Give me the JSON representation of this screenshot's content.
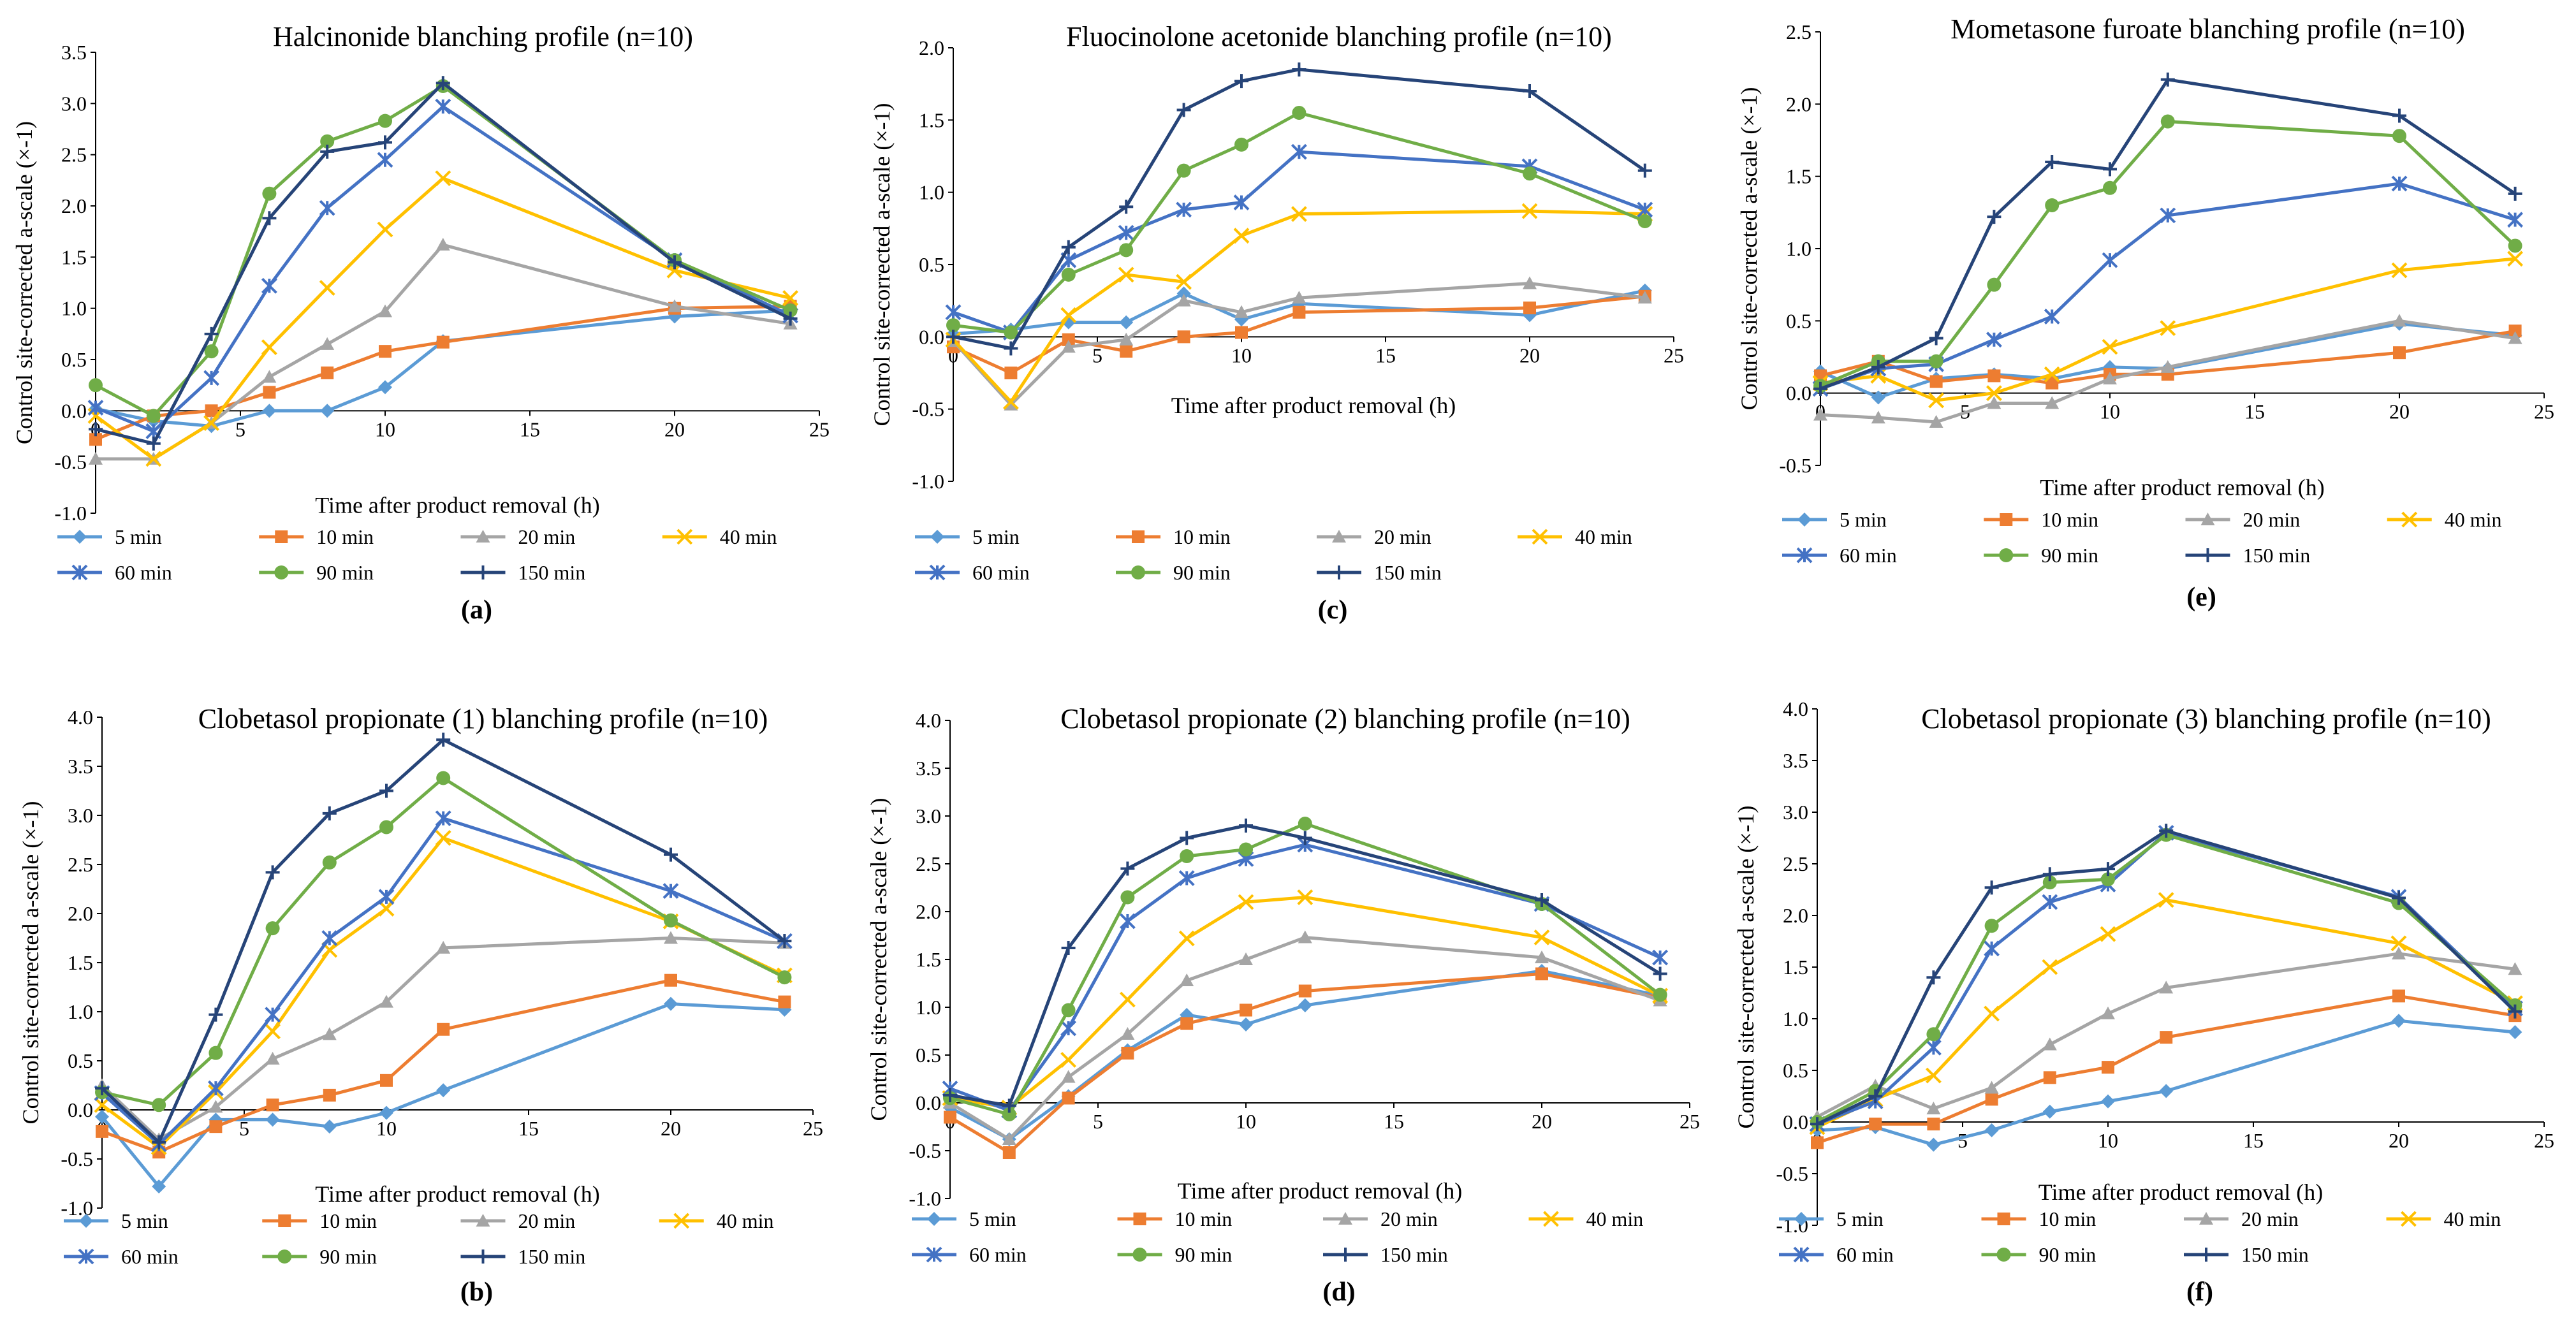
{
  "figure": {
    "x_axis_label": "Time after product removal (h)",
    "y_axis_label": "Control site-corrected a-scale (×-1)"
  },
  "series_meta": [
    {
      "name": "5 min",
      "color": "#5B9BD5",
      "marker": "diamond"
    },
    {
      "name": "10 min",
      "color": "#ED7D31",
      "marker": "square"
    },
    {
      "name": "20 min",
      "color": "#A5A5A5",
      "marker": "triangle"
    },
    {
      "name": "40 min",
      "color": "#FFC000",
      "marker": "x"
    },
    {
      "name": "60 min",
      "color": "#4472C4",
      "marker": "star"
    },
    {
      "name": "90 min",
      "color": "#70AD47",
      "marker": "circle"
    },
    {
      "name": "150 min",
      "color": "#264478",
      "marker": "plus"
    }
  ],
  "chart_data": [
    {
      "type": "line",
      "label": "(a)",
      "title": "Halcinonide blanching profile (n=10)",
      "xlabel": "Time after product removal (h)",
      "ylabel": "Control site-corrected a-scale (×-1)",
      "xlim": [
        0,
        25
      ],
      "ylim": [
        -1.0,
        3.5
      ],
      "yticks": [
        "-1.0",
        "-0.5",
        "0.0",
        "0.5",
        "1.0",
        "1.5",
        "2.0",
        "2.5",
        "3.0",
        "3.5"
      ],
      "xticks": [
        "0",
        "5",
        "10",
        "15",
        "20",
        "25"
      ],
      "x": [
        0,
        2,
        4,
        6,
        8,
        10,
        12,
        20,
        24
      ],
      "series": [
        {
          "name": "5 min",
          "values": [
            0.02,
            -0.1,
            -0.15,
            0.0,
            0.0,
            0.23,
            0.68,
            0.92,
            0.98
          ]
        },
        {
          "name": "10 min",
          "values": [
            -0.28,
            -0.05,
            0.0,
            0.18,
            0.37,
            0.58,
            0.67,
            1.0,
            1.02
          ]
        },
        {
          "name": "20 min",
          "values": [
            -0.47,
            -0.47,
            -0.12,
            0.33,
            0.65,
            0.97,
            1.62,
            1.02,
            0.85
          ]
        },
        {
          "name": "40 min",
          "values": [
            -0.05,
            -0.47,
            -0.12,
            0.62,
            1.2,
            1.77,
            2.27,
            1.37,
            1.1
          ]
        },
        {
          "name": "60 min",
          "values": [
            0.03,
            -0.2,
            0.32,
            1.22,
            1.98,
            2.45,
            2.97,
            1.47,
            0.93
          ]
        },
        {
          "name": "90 min",
          "values": [
            0.25,
            -0.05,
            0.58,
            2.12,
            2.63,
            2.83,
            3.17,
            1.47,
            0.98
          ]
        },
        {
          "name": "150 min",
          "values": [
            -0.18,
            -0.32,
            0.75,
            1.88,
            2.53,
            2.62,
            3.2,
            1.45,
            0.9
          ]
        }
      ]
    },
    {
      "type": "line",
      "label": "(c)",
      "title": "Fluocinolone acetonide blanching profile (n=10)",
      "xlabel": "Time after product removal (h)",
      "ylabel": "Control site-corrected a-scale (×-1)",
      "xlim": [
        0,
        25
      ],
      "ylim": [
        -1.0,
        2.0
      ],
      "yticks": [
        "-1.0",
        "-0.5",
        "0.0",
        "0.5",
        "1.0",
        "1.5",
        "2.0"
      ],
      "xticks": [
        "0",
        "5",
        "10",
        "15",
        "20",
        "25"
      ],
      "x": [
        0,
        2,
        4,
        6,
        8,
        10,
        12,
        20,
        24
      ],
      "series": [
        {
          "name": "5 min",
          "values": [
            0.02,
            0.05,
            0.1,
            0.1,
            0.3,
            0.12,
            0.23,
            0.15,
            0.32
          ]
        },
        {
          "name": "10 min",
          "values": [
            -0.07,
            -0.25,
            -0.02,
            -0.1,
            0.0,
            0.03,
            0.17,
            0.2,
            0.28
          ]
        },
        {
          "name": "20 min",
          "values": [
            -0.03,
            -0.47,
            -0.07,
            -0.02,
            0.25,
            0.17,
            0.27,
            0.37,
            0.27
          ]
        },
        {
          "name": "40 min",
          "values": [
            -0.02,
            -0.45,
            0.15,
            0.43,
            0.38,
            0.7,
            0.85,
            0.87,
            0.85
          ]
        },
        {
          "name": "60 min",
          "values": [
            0.17,
            0.03,
            0.53,
            0.72,
            0.88,
            0.93,
            1.28,
            1.18,
            0.88
          ]
        },
        {
          "name": "90 min",
          "values": [
            0.08,
            0.03,
            0.43,
            0.6,
            1.15,
            1.33,
            1.55,
            1.13,
            0.8
          ]
        },
        {
          "name": "150 min",
          "values": [
            0.0,
            -0.08,
            0.62,
            0.9,
            1.57,
            1.77,
            1.85,
            1.7,
            1.15
          ]
        }
      ]
    },
    {
      "type": "line",
      "label": "(e)",
      "title": "Mometasone furoate blanching profile (n=10)",
      "xlabel": "Time after product removal (h)",
      "ylabel": "Control site-corrected a-scale (×-1)",
      "xlim": [
        0,
        25
      ],
      "ylim": [
        -0.5,
        2.5
      ],
      "yticks": [
        "-0.5",
        "0.0",
        "0.5",
        "1.0",
        "1.5",
        "2.0",
        "2.5"
      ],
      "xticks": [
        "0",
        "5",
        "10",
        "15",
        "20",
        "25"
      ],
      "x": [
        0,
        2,
        4,
        6,
        8,
        10,
        12,
        20,
        24
      ],
      "series": [
        {
          "name": "5 min",
          "values": [
            0.15,
            -0.03,
            0.1,
            0.13,
            0.1,
            0.18,
            0.17,
            0.48,
            0.4
          ]
        },
        {
          "name": "10 min",
          "values": [
            0.12,
            0.22,
            0.08,
            0.12,
            0.07,
            0.13,
            0.13,
            0.28,
            0.43
          ]
        },
        {
          "name": "20 min",
          "values": [
            -0.15,
            -0.17,
            -0.2,
            -0.07,
            -0.07,
            0.1,
            0.18,
            0.5,
            0.38
          ]
        },
        {
          "name": "40 min",
          "values": [
            0.07,
            0.12,
            -0.05,
            0.0,
            0.13,
            0.32,
            0.45,
            0.85,
            0.93
          ]
        },
        {
          "name": "60 min",
          "values": [
            0.03,
            0.17,
            0.2,
            0.37,
            0.53,
            0.92,
            1.23,
            1.45,
            1.2
          ]
        },
        {
          "name": "90 min",
          "values": [
            0.05,
            0.22,
            0.22,
            0.75,
            1.3,
            1.42,
            1.88,
            1.78,
            1.02
          ]
        },
        {
          "name": "150 min",
          "values": [
            0.03,
            0.18,
            0.38,
            1.22,
            1.6,
            1.55,
            2.17,
            1.92,
            1.38
          ]
        }
      ]
    },
    {
      "type": "line",
      "label": "(b)",
      "title": "Clobetasol propionate (1) blanching profile (n=10)",
      "xlabel": "Time after product removal (h)",
      "ylabel": "Control site-corrected a-scale (×-1)",
      "xlim": [
        0,
        25
      ],
      "ylim": [
        -1.0,
        4.0
      ],
      "yticks": [
        "-1.0",
        "-0.5",
        "0.0",
        "0.5",
        "1.0",
        "1.5",
        "2.0",
        "2.5",
        "3.0",
        "3.5",
        "4.0"
      ],
      "xticks": [
        "0",
        "5",
        "10",
        "15",
        "20",
        "25"
      ],
      "x": [
        0,
        2,
        4,
        6,
        8,
        10,
        12,
        20,
        24
      ],
      "series": [
        {
          "name": "5 min",
          "values": [
            -0.07,
            -0.78,
            -0.1,
            -0.1,
            -0.17,
            -0.03,
            0.2,
            1.08,
            1.02
          ]
        },
        {
          "name": "10 min",
          "values": [
            -0.22,
            -0.43,
            -0.17,
            0.05,
            0.15,
            0.3,
            0.82,
            1.32,
            1.1
          ]
        },
        {
          "name": "20 min",
          "values": [
            0.25,
            -0.3,
            0.03,
            0.52,
            0.77,
            1.1,
            1.65,
            1.75,
            1.7
          ]
        },
        {
          "name": "40 min",
          "values": [
            0.05,
            -0.38,
            0.18,
            0.8,
            1.63,
            2.05,
            2.77,
            1.92,
            1.37
          ]
        },
        {
          "name": "60 min",
          "values": [
            0.17,
            -0.35,
            0.22,
            0.97,
            1.75,
            2.17,
            2.97,
            2.23,
            1.72
          ]
        },
        {
          "name": "90 min",
          "values": [
            0.18,
            0.05,
            0.58,
            1.85,
            2.52,
            2.88,
            3.38,
            1.93,
            1.35
          ]
        },
        {
          "name": "150 min",
          "values": [
            0.22,
            -0.33,
            0.97,
            2.42,
            3.02,
            3.25,
            3.77,
            2.6,
            1.72
          ]
        }
      ]
    },
    {
      "type": "line",
      "label": "(d)",
      "title": "Clobetasol propionate (2) blanching profile (n=10)",
      "xlabel": "Time after product removal (h)",
      "ylabel": "Control site-corrected a-scale (×-1)",
      "xlim": [
        0,
        25
      ],
      "ylim": [
        -1.0,
        4.0
      ],
      "yticks": [
        "-1.0",
        "-0.5",
        "0.0",
        "0.5",
        "1.0",
        "1.5",
        "2.0",
        "2.5",
        "3.0",
        "3.5",
        "4.0"
      ],
      "xticks": [
        "0",
        "5",
        "10",
        "15",
        "20",
        "25"
      ],
      "x": [
        0,
        2,
        4,
        6,
        8,
        10,
        12,
        20,
        24
      ],
      "series": [
        {
          "name": "5 min",
          "values": [
            -0.05,
            -0.38,
            0.07,
            0.55,
            0.92,
            0.82,
            1.02,
            1.38,
            1.12
          ]
        },
        {
          "name": "10 min",
          "values": [
            -0.15,
            -0.52,
            0.05,
            0.52,
            0.83,
            0.97,
            1.17,
            1.35,
            1.1
          ]
        },
        {
          "name": "20 min",
          "values": [
            0.0,
            -0.38,
            0.27,
            0.72,
            1.28,
            1.5,
            1.73,
            1.52,
            1.07
          ]
        },
        {
          "name": "40 min",
          "values": [
            0.05,
            -0.05,
            0.45,
            1.08,
            1.72,
            2.1,
            2.15,
            1.73,
            1.12
          ]
        },
        {
          "name": "60 min",
          "values": [
            0.15,
            -0.08,
            0.78,
            1.9,
            2.35,
            2.55,
            2.7,
            2.08,
            1.52
          ]
        },
        {
          "name": "90 min",
          "values": [
            0.05,
            -0.12,
            0.97,
            2.15,
            2.58,
            2.65,
            2.92,
            2.08,
            1.13
          ]
        },
        {
          "name": "150 min",
          "values": [
            0.08,
            -0.03,
            1.62,
            2.45,
            2.77,
            2.9,
            2.77,
            2.12,
            1.35
          ]
        }
      ]
    },
    {
      "type": "line",
      "label": "(f)",
      "title": "Clobetasol propionate (3) blanching profile (n=10)",
      "xlabel": "Time after product removal (h)",
      "ylabel": "Control site-corrected a-scale (×-1)",
      "xlim": [
        0,
        25
      ],
      "ylim": [
        -1.0,
        4.0
      ],
      "yticks": [
        "-1.0",
        "-0.5",
        "0.0",
        "0.5",
        "1.0",
        "1.5",
        "2.0",
        "2.5",
        "3.0",
        "3.5",
        "4.0"
      ],
      "xticks": [
        "0",
        "5",
        "10",
        "15",
        "20",
        "25"
      ],
      "x": [
        0,
        2,
        4,
        6,
        8,
        10,
        12,
        20,
        24
      ],
      "series": [
        {
          "name": "5 min",
          "values": [
            -0.08,
            -0.05,
            -0.22,
            -0.08,
            0.1,
            0.2,
            0.3,
            0.98,
            0.87
          ]
        },
        {
          "name": "10 min",
          "values": [
            -0.2,
            -0.02,
            -0.02,
            0.22,
            0.43,
            0.53,
            0.82,
            1.22,
            1.03
          ]
        },
        {
          "name": "20 min",
          "values": [
            0.05,
            0.35,
            0.13,
            0.33,
            0.75,
            1.05,
            1.3,
            1.63,
            1.48
          ]
        },
        {
          "name": "40 min",
          "values": [
            -0.05,
            0.22,
            0.45,
            1.05,
            1.5,
            1.82,
            2.15,
            1.73,
            1.15
          ]
        },
        {
          "name": "60 min",
          "values": [
            -0.02,
            0.2,
            0.72,
            1.68,
            2.13,
            2.3,
            2.8,
            2.18,
            1.1
          ]
        },
        {
          "name": "90 min",
          "values": [
            0.0,
            0.3,
            0.85,
            1.9,
            2.32,
            2.35,
            2.78,
            2.12,
            1.13
          ]
        },
        {
          "name": "150 min",
          "values": [
            -0.02,
            0.25,
            1.4,
            2.27,
            2.4,
            2.45,
            2.82,
            2.17,
            1.07
          ]
        }
      ]
    }
  ]
}
